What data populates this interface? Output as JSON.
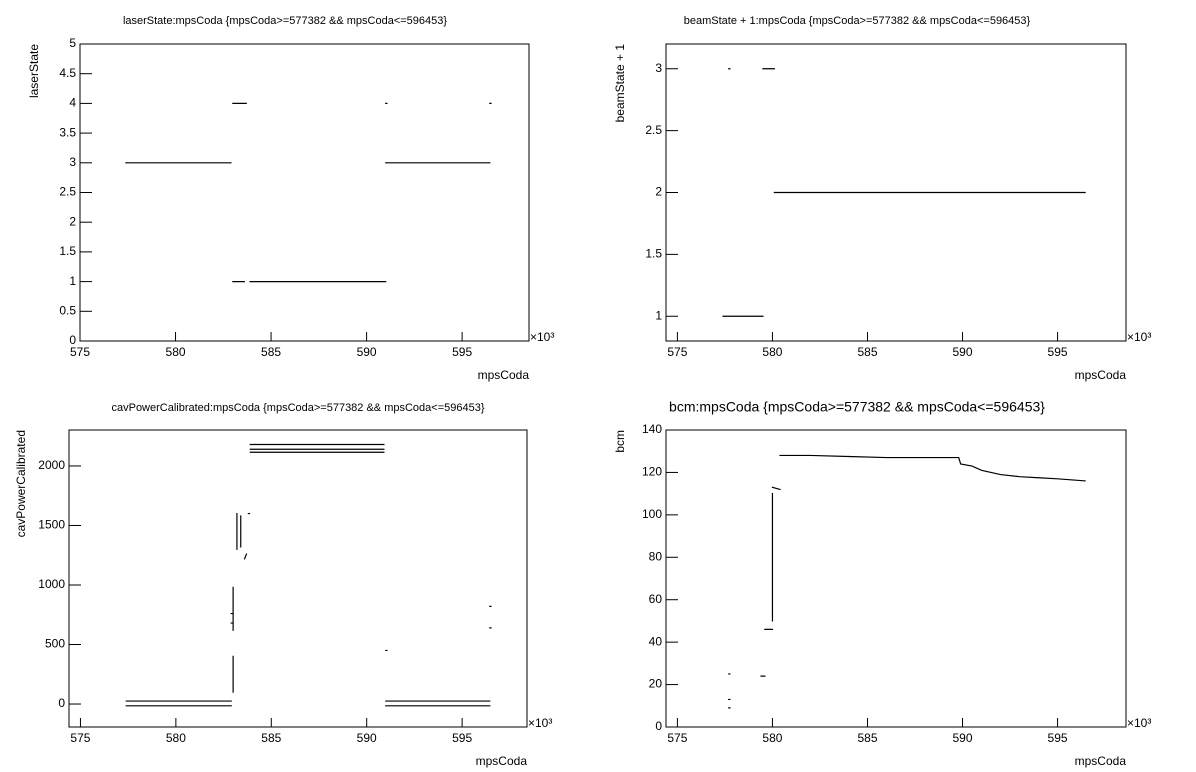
{
  "chart_data": [
    {
      "type": "line",
      "title": "laserState:mpsCoda {mpsCoda>=577382 && mpsCoda<=596453}",
      "xlabel": "mpsCoda",
      "ylabel": "laserState",
      "x_exponent": "×10³",
      "x": [
        577.4,
        582.9,
        null,
        583.0,
        583.7,
        null,
        583.0,
        583.6,
        null,
        583.9,
        591.0,
        null,
        591.0,
        596.45,
        null,
        591.0,
        null,
        596.45
      ],
      "values": [
        3,
        3,
        null,
        4,
        4,
        null,
        1,
        1,
        null,
        1,
        1,
        null,
        3,
        3,
        null,
        4,
        null,
        4
      ],
      "color": "#000000",
      "xlim": [
        575,
        598.5
      ],
      "ylim": [
        0,
        5
      ],
      "xticks": [
        575,
        580,
        585,
        590,
        595
      ],
      "yticks": [
        0,
        0.5,
        1,
        1.5,
        2,
        2.5,
        3,
        3.5,
        4,
        4.5,
        5
      ]
    },
    {
      "type": "line",
      "title": "beamState + 1:mpsCoda {mpsCoda>=577382 && mpsCoda<=596453}",
      "xlabel": "mpsCoda",
      "ylabel": "beamState + 1",
      "x_exponent": "×10³",
      "x": [
        577.7,
        null,
        579.5,
        580.1,
        null,
        577.4,
        579.5,
        null,
        580.1,
        596.45
      ],
      "values": [
        3,
        null,
        3,
        3,
        null,
        1,
        1,
        null,
        2,
        2
      ],
      "color": "#000000",
      "xlim": [
        574.4,
        598.6
      ],
      "ylim": [
        0.8,
        3.2
      ],
      "xticks": [
        575,
        580,
        585,
        590,
        595
      ],
      "yticks": [
        1,
        1.5,
        2,
        2.5,
        3
      ]
    },
    {
      "type": "line",
      "title": "cavPowerCalibrated:mpsCoda {mpsCoda>=577382 && mpsCoda<=596453}",
      "xlabel": "mpsCoda",
      "ylabel": "cavPowerCalibrated",
      "x_exponent": "×10³",
      "x": [
        577.4,
        582.9,
        null,
        577.4,
        582.9,
        null,
        591.0,
        596.45,
        null,
        591.0,
        596.45,
        null,
        583.9,
        590.9,
        null,
        583.9,
        590.9,
        null,
        583.9,
        590.9,
        null,
        583.0,
        583.0,
        null,
        583.0,
        583.0,
        null,
        583.2,
        583.2,
        null,
        583.4,
        583.4,
        null,
        583.6,
        583.7,
        null,
        583.8,
        null,
        591.0,
        null,
        596.45,
        null,
        596.45,
        null,
        582.9,
        null,
        582.9
      ],
      "values": [
        25,
        25,
        null,
        -15,
        -15,
        null,
        25,
        25,
        null,
        -15,
        -15,
        null,
        2180,
        2180,
        null,
        2140,
        2140,
        null,
        2115,
        2115,
        null,
        100,
        400,
        null,
        620,
        980,
        null,
        1300,
        1600,
        null,
        1320,
        1580,
        null,
        1220,
        1260,
        null,
        1600,
        null,
        450,
        null,
        820,
        null,
        640,
        null,
        760,
        null,
        680
      ],
      "color": "#000000",
      "xlim": [
        574.4,
        598.4
      ],
      "ylim": [
        -193,
        2302
      ],
      "xticks": [
        575,
        580,
        585,
        590,
        595
      ],
      "yticks": [
        0,
        500,
        1000,
        1500,
        2000
      ]
    },
    {
      "type": "line",
      "title": "bcm:mpsCoda {mpsCoda>=577382 && mpsCoda<=596453}",
      "xlabel": "mpsCoda",
      "ylabel": "bcm",
      "x_exponent": "×10³",
      "x": [
        577.7,
        null,
        577.7,
        null,
        577.7,
        null,
        579.4,
        579.6,
        null,
        579.6,
        580.0,
        null,
        580.0,
        580.0,
        null,
        580.0,
        580.4,
        null,
        580.4,
        582,
        584,
        586,
        588,
        589.8,
        589.9,
        590.5,
        591,
        592,
        593,
        594,
        595,
        596.45
      ],
      "values": [
        25,
        null,
        13,
        null,
        9,
        null,
        24,
        24,
        null,
        46,
        46,
        null,
        50,
        110,
        null,
        113,
        112,
        null,
        128,
        128,
        127.5,
        127,
        127,
        127,
        124,
        123,
        121,
        119,
        118,
        117.5,
        117,
        116
      ],
      "color": "#000000",
      "xlim": [
        574.4,
        598.6
      ],
      "ylim": [
        0,
        140
      ],
      "xticks": [
        575,
        580,
        585,
        590,
        595
      ],
      "yticks": [
        0,
        20,
        40,
        60,
        80,
        100,
        120,
        140
      ]
    }
  ]
}
